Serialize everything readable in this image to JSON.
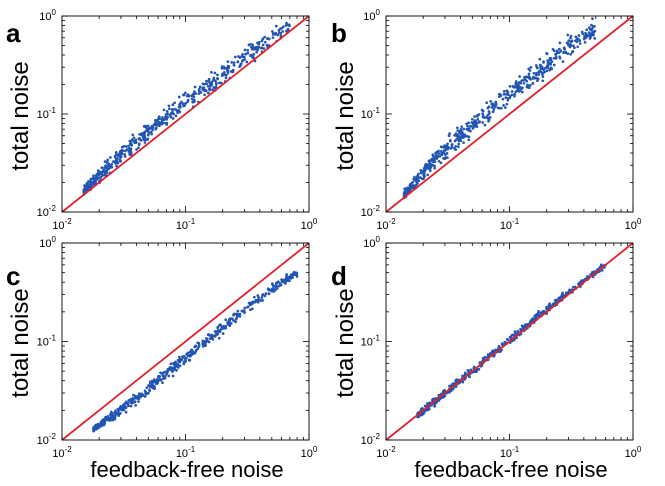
{
  "figure": {
    "background": "#ffffff",
    "point_color": "#2255b3",
    "identity_line_color": "#e0232b"
  },
  "chart_data": [
    {
      "panel": "a",
      "type": "scatter",
      "xlabel": "",
      "ylabel": "total noise",
      "xscale": "log",
      "yscale": "log",
      "xlim": [
        0.01,
        1
      ],
      "ylim": [
        0.01,
        1
      ],
      "x_tick_labels": [
        "10^-2",
        "10^-1",
        "10^0"
      ],
      "y_tick_labels": [
        "10^-2",
        "10^-1",
        "10^0"
      ],
      "reference_line": "y = x",
      "trend": [
        {
          "x": 0.015,
          "y_low": 0.013,
          "y_high": 0.02
        },
        {
          "x": 0.02,
          "y_low": 0.019,
          "y_high": 0.03
        },
        {
          "x": 0.03,
          "y_low": 0.03,
          "y_high": 0.05
        },
        {
          "x": 0.05,
          "y_low": 0.05,
          "y_high": 0.09
        },
        {
          "x": 0.1,
          "y_low": 0.1,
          "y_high": 0.18
        },
        {
          "x": 0.2,
          "y_low": 0.18,
          "y_high": 0.35
        },
        {
          "x": 0.3,
          "y_low": 0.28,
          "y_high": 0.55
        },
        {
          "x": 0.5,
          "y_low": 0.45,
          "y_high": 0.8
        },
        {
          "x": 0.7,
          "y_low": 0.65,
          "y_high": 1.0
        }
      ]
    },
    {
      "panel": "b",
      "type": "scatter",
      "xlabel": "",
      "ylabel": "total noise",
      "xscale": "log",
      "yscale": "log",
      "xlim": [
        0.01,
        1
      ],
      "ylim": [
        0.01,
        1
      ],
      "x_tick_labels": [
        "10^-2",
        "10^-1",
        "10^0"
      ],
      "y_tick_labels": [
        "10^-2",
        "10^-1",
        "10^0"
      ],
      "reference_line": "y = x",
      "trend": [
        {
          "x": 0.014,
          "y_low": 0.013,
          "y_high": 0.018
        },
        {
          "x": 0.02,
          "y_low": 0.02,
          "y_high": 0.032
        },
        {
          "x": 0.03,
          "y_low": 0.032,
          "y_high": 0.06
        },
        {
          "x": 0.05,
          "y_low": 0.055,
          "y_high": 0.11
        },
        {
          "x": 0.1,
          "y_low": 0.11,
          "y_high": 0.23
        },
        {
          "x": 0.2,
          "y_low": 0.22,
          "y_high": 0.45
        },
        {
          "x": 0.3,
          "y_low": 0.33,
          "y_high": 0.7
        },
        {
          "x": 0.5,
          "y_low": 0.55,
          "y_high": 1.0
        }
      ]
    },
    {
      "panel": "c",
      "type": "scatter",
      "xlabel": "feedback-free noise",
      "ylabel": "total noise",
      "xscale": "log",
      "yscale": "log",
      "xlim": [
        0.01,
        1
      ],
      "ylim": [
        0.01,
        1
      ],
      "x_tick_labels": [
        "10^-2",
        "10^-1",
        "10^0"
      ],
      "y_tick_labels": [
        "10^-2",
        "10^-1",
        "10^0"
      ],
      "reference_line": "y = x",
      "trend": [
        {
          "x": 0.018,
          "y_low": 0.012,
          "y_high": 0.014
        },
        {
          "x": 0.03,
          "y_low": 0.017,
          "y_high": 0.024
        },
        {
          "x": 0.05,
          "y_low": 0.027,
          "y_high": 0.04
        },
        {
          "x": 0.1,
          "y_low": 0.055,
          "y_high": 0.085
        },
        {
          "x": 0.2,
          "y_low": 0.11,
          "y_high": 0.17
        },
        {
          "x": 0.3,
          "y_low": 0.17,
          "y_high": 0.25
        },
        {
          "x": 0.5,
          "y_low": 0.28,
          "y_high": 0.42
        },
        {
          "x": 0.8,
          "y_low": 0.45,
          "y_high": 0.55
        }
      ]
    },
    {
      "panel": "d",
      "type": "scatter",
      "xlabel": "feedback-free noise",
      "ylabel": "total noise",
      "xscale": "log",
      "yscale": "log",
      "xlim": [
        0.01,
        1
      ],
      "ylim": [
        0.01,
        1
      ],
      "x_tick_labels": [
        "10^-2",
        "10^-1",
        "10^0"
      ],
      "y_tick_labels": [
        "10^-2",
        "10^-1",
        "10^0"
      ],
      "reference_line": "y = x",
      "trend": [
        {
          "x": 0.018,
          "y_low": 0.016,
          "y_high": 0.02
        },
        {
          "x": 0.03,
          "y_low": 0.026,
          "y_high": 0.034
        },
        {
          "x": 0.05,
          "y_low": 0.044,
          "y_high": 0.058
        },
        {
          "x": 0.1,
          "y_low": 0.09,
          "y_high": 0.12
        },
        {
          "x": 0.2,
          "y_low": 0.185,
          "y_high": 0.24
        },
        {
          "x": 0.3,
          "y_low": 0.28,
          "y_high": 0.35
        },
        {
          "x": 0.6,
          "y_low": 0.55,
          "y_high": 0.65
        }
      ]
    }
  ]
}
